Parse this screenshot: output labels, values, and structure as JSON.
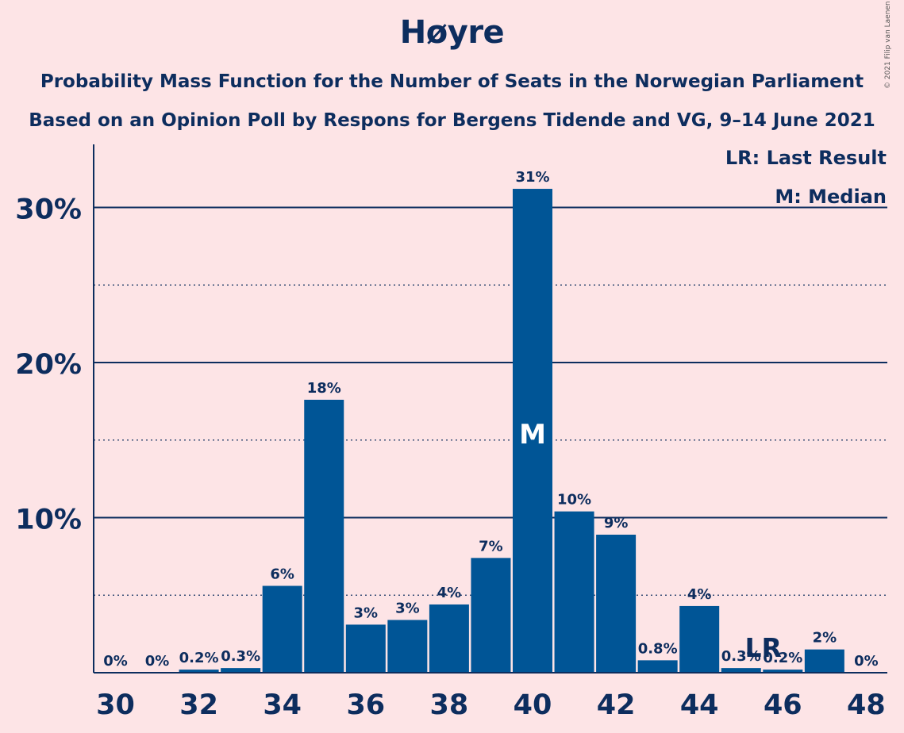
{
  "title": "Høyre",
  "subtitle1": "Probability Mass Function for the Number of Seats in the Norwegian Parliament",
  "subtitle2": "Based on an Opinion Poll by Respons for Bergens Tidende and VG, 9–14 June 2021",
  "copyright": "© 2021 Filip van Laenen",
  "legend": {
    "lr": "LR: Last Result",
    "m": "M: Median"
  },
  "colors": {
    "bar": "#005596",
    "text": "#0d2d5e",
    "background": "#fde4e6"
  },
  "chart_data": {
    "type": "bar",
    "x": [
      30,
      31,
      32,
      33,
      34,
      35,
      36,
      37,
      38,
      39,
      40,
      41,
      42,
      43,
      44,
      45,
      46,
      47,
      48
    ],
    "values": [
      0,
      0,
      0.2,
      0.3,
      5.6,
      17.6,
      3.1,
      3.4,
      4.4,
      7.4,
      31.2,
      10.4,
      8.9,
      0.8,
      4.3,
      0.3,
      0.2,
      1.5,
      0
    ],
    "data_labels": [
      "0%",
      "0%",
      "0.2%",
      "0.3%",
      "6%",
      "18%",
      "3%",
      "3%",
      "4%",
      "7%",
      "31%",
      "10%",
      "9%",
      "0.8%",
      "4%",
      "0.3%",
      "0.2%",
      "2%",
      "0%"
    ],
    "x_tick_labels": [
      "30",
      "32",
      "34",
      "36",
      "38",
      "40",
      "42",
      "44",
      "46",
      "48"
    ],
    "y_tick_labels": [
      "10%",
      "20%",
      "30%"
    ],
    "y_ticks": [
      10,
      20,
      30
    ],
    "y_minor_ticks": [
      5,
      15,
      25
    ],
    "ylim": [
      0,
      34
    ],
    "median": {
      "x": 40,
      "label": "M"
    },
    "last_result": {
      "x": 45,
      "label": "LR"
    },
    "legend_position": "top-right"
  }
}
